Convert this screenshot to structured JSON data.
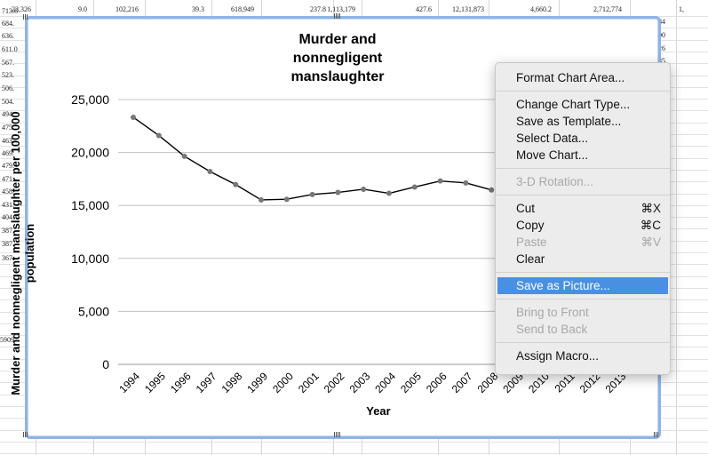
{
  "spreadsheet": {
    "top_row": [
      "23,326",
      "9.0",
      "102,216",
      "39.3",
      "618,949",
      "237.8",
      "1,113,179",
      "427.6",
      "12,131,873",
      "4,660.2",
      "2,712,774",
      "1,"
    ],
    "left_column": [
      "713.6",
      "684.",
      "636.",
      "611.0",
      "567.",
      "523.",
      "506.",
      "504.",
      "494.",
      "475.",
      "463.",
      "469.",
      "479.",
      "471.",
      "458.",
      "431.",
      "404.",
      "387.",
      "387.",
      "367.",
      "5909"
    ],
    "right_column": [
      "784",
      "400",
      "526",
      "735"
    ]
  },
  "chart": {
    "title_lines": [
      "Murder and",
      "nonnegligent",
      "manslaughter"
    ],
    "xlabel": "Year",
    "ylabel": "Murder and nonnegligent manslaughter per 100,000 population"
  },
  "chart_data": {
    "type": "line",
    "title": "Murder and nonnegligent manslaughter",
    "xlabel": "Year",
    "ylabel": "Murder and nonnegligent manslaughter per 100,000 population",
    "x": [
      "1994",
      "1995",
      "1996",
      "1997",
      "1998",
      "1999",
      "2000",
      "2001",
      "2002",
      "2003",
      "2004",
      "2005",
      "2006",
      "2007",
      "2008",
      "2009",
      "2010",
      "2011",
      "2012",
      "2013"
    ],
    "series": [
      {
        "values": [
          23326,
          21606,
          19645,
          18208,
          16974,
          15522,
          15586,
          16037,
          16229,
          16528,
          16148,
          16740,
          17309,
          17128,
          16465,
          null,
          null,
          null,
          null,
          null
        ]
      }
    ],
    "ylim": [
      0,
      25000
    ],
    "yticks": [
      0,
      5000,
      10000,
      15000,
      20000,
      25000
    ],
    "ytick_labels": [
      "0",
      "5,000",
      "10,000",
      "15,000",
      "20,000",
      "25,000"
    ],
    "grid": true,
    "color": "#000000",
    "marker_color": "#777777"
  },
  "context_menu": {
    "items": [
      {
        "label": "Format Chart Area...",
        "shortcut": "",
        "enabled": true
      },
      {
        "separator": true
      },
      {
        "label": "Change Chart Type...",
        "shortcut": "",
        "enabled": true
      },
      {
        "label": "Save as Template...",
        "shortcut": "",
        "enabled": true
      },
      {
        "label": "Select Data...",
        "shortcut": "",
        "enabled": true
      },
      {
        "label": "Move Chart...",
        "shortcut": "",
        "enabled": true
      },
      {
        "separator": true
      },
      {
        "label": "3-D Rotation...",
        "shortcut": "",
        "enabled": false
      },
      {
        "separator": true
      },
      {
        "label": "Cut",
        "shortcut": "⌘X",
        "enabled": true
      },
      {
        "label": "Copy",
        "shortcut": "⌘C",
        "enabled": true
      },
      {
        "label": "Paste",
        "shortcut": "⌘V",
        "enabled": false
      },
      {
        "label": "Clear",
        "shortcut": "",
        "enabled": true
      },
      {
        "separator": true
      },
      {
        "label": "Save as Picture...",
        "shortcut": "",
        "enabled": true,
        "selected": true
      },
      {
        "separator": true
      },
      {
        "label": "Bring to Front",
        "shortcut": "",
        "enabled": false
      },
      {
        "label": "Send to Back",
        "shortcut": "",
        "enabled": false
      },
      {
        "separator": true
      },
      {
        "label": "Assign Macro...",
        "shortcut": "",
        "enabled": true
      }
    ]
  },
  "colors": {
    "selection_frame": "#8fb3e6",
    "menu_highlight": "#4a90e2",
    "gridline": "#c0c0c0"
  }
}
